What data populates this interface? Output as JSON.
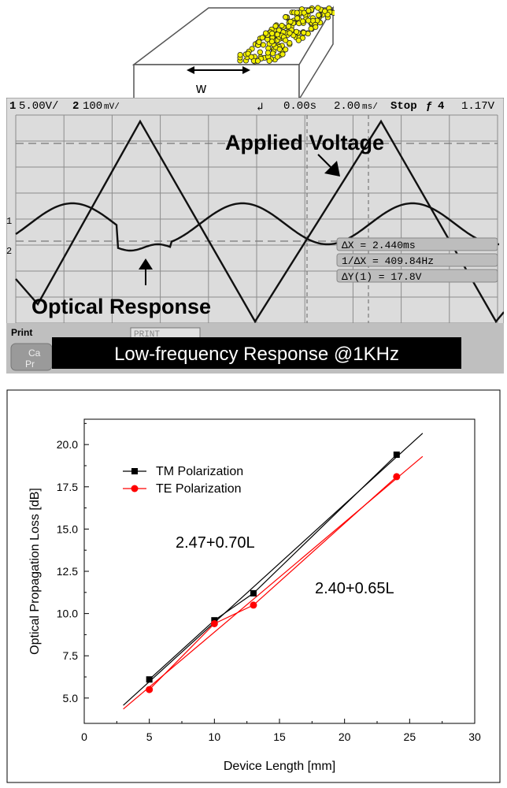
{
  "device": {
    "width_label": "w"
  },
  "scope": {
    "header": {
      "ch1": "1",
      "ch1_scale": "5.00V/",
      "ch2": "2",
      "ch2_scale": "100",
      "ch2_unit": "mV/",
      "time_offset": "0.00s",
      "time_scale": "2.00",
      "time_unit": "ms/",
      "status": "Stop",
      "trigger_ch": "4",
      "trigger_level": "1.17V"
    },
    "marker_1": "1",
    "marker_2": "2",
    "applied_voltage_label": "Applied Voltage",
    "optical_response_label": "Optical Response",
    "measurements": {
      "delta_x": "ΔX = 2.440ms",
      "inv_delta_x": "1/ΔX = 409.84Hz",
      "delta_y": "ΔY(1) = 17.8V"
    },
    "bottom_menu": {
      "print_label": "Print",
      "print_box": "PRINT",
      "cancel_label": "Ca",
      "cancel_label_2": "Pr"
    },
    "banner": "Low-frequency Response @1KHz",
    "colors": {
      "background": "#dcdcdc",
      "grid": "#8c8c8c",
      "trace": "#111111",
      "banner_bg": "#000000",
      "banner_text": "#ffffff"
    }
  },
  "chart_data": {
    "type": "scatter",
    "xlabel": "Device Length [mm]",
    "ylabel": "Optical Propagation Loss [dB]",
    "xlim": [
      0,
      30
    ],
    "ylim": [
      3.5,
      21.5
    ],
    "xticks": [
      "0",
      "5",
      "10",
      "15",
      "20",
      "25",
      "30"
    ],
    "yticks": [
      "5.0",
      "7.5",
      "10.0",
      "12.5",
      "15.0",
      "17.5",
      "20.0"
    ],
    "series": [
      {
        "name": "TM Polarization",
        "color": "#000000",
        "marker": "square",
        "x": [
          5,
          10,
          13,
          24
        ],
        "y": [
          6.1,
          9.6,
          11.2,
          19.4
        ],
        "fit_label": "2.47+0.70L",
        "fit": {
          "intercept": 2.47,
          "slope": 0.7,
          "x_range": [
            3,
            26
          ]
        }
      },
      {
        "name": "TE Polarization",
        "color": "#ff0000",
        "marker": "circle",
        "x": [
          5,
          10,
          13,
          24
        ],
        "y": [
          5.5,
          9.4,
          10.5,
          18.1
        ],
        "fit_label": "2.40+0.65L",
        "fit": {
          "intercept": 2.4,
          "slope": 0.65,
          "x_range": [
            3,
            26
          ]
        }
      }
    ],
    "legend_position": "top-left",
    "grid": false
  }
}
